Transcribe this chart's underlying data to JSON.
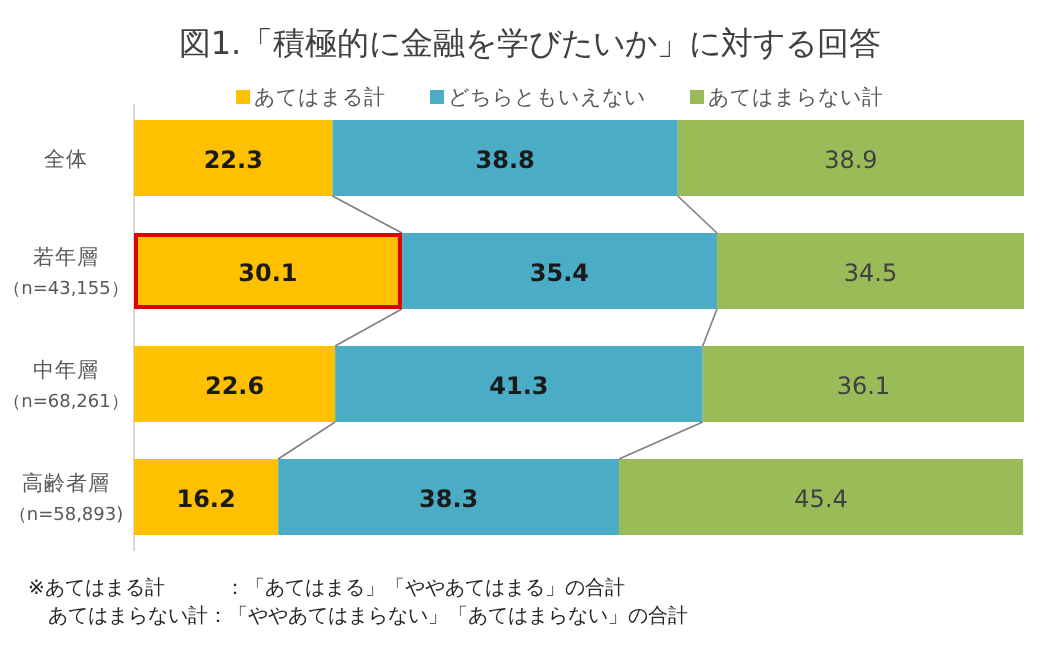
{
  "chart_data": {
    "type": "bar",
    "orientation": "horizontal",
    "stacked": true,
    "data_labels": true,
    "legend": "top",
    "title": "図1.「積極的に金融を学びたいか」に対する回答",
    "categories": [
      "全体",
      "若年層（n=43,155）",
      "中年層（n=68,261）",
      "高齢者層（n=58,893)"
    ],
    "series": [
      {
        "name": "あてはまる計",
        "color": "#ffc000",
        "values": [
          22.3,
          30.1,
          22.6,
          16.2
        ]
      },
      {
        "name": "どちらともいえない",
        "color": "#4bacc6",
        "values": [
          38.8,
          35.4,
          41.3,
          38.3
        ]
      },
      {
        "name": "あてはまらない計",
        "color": "#9bbb59",
        "values": [
          38.9,
          34.5,
          36.1,
          45.4
        ]
      }
    ],
    "annotations": [
      "※あてはまる計　　　：「あてはまる」「ややあてはまる」の合計",
      "　あてはまらない計：「ややあてはまらない」「あてはまらない」の合計"
    ]
  }
}
